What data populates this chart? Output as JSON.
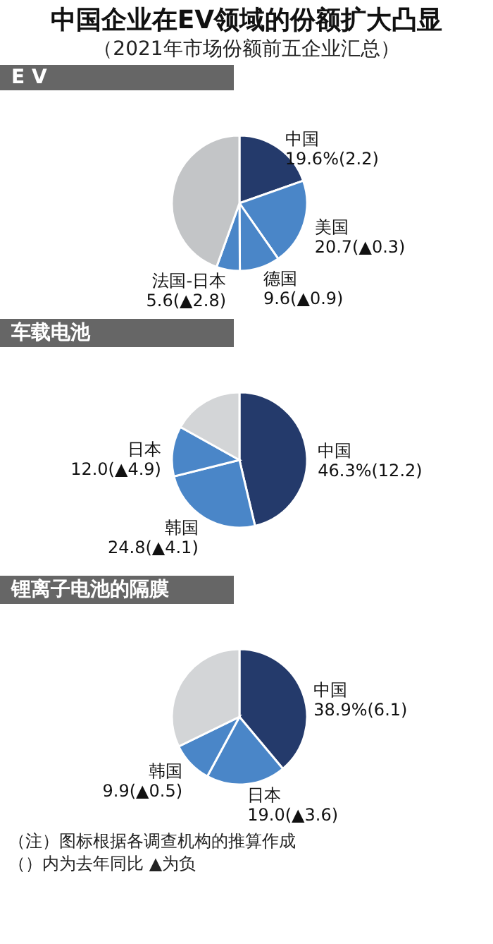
{
  "chart_data": [
    {
      "type": "other",
      "title": "中国企业在EV领域的份额扩大凸显",
      "subtitle": "（2021年市场份额前五企业汇总）"
    },
    {
      "type": "pie",
      "title": "E V",
      "categories": [
        "中国",
        "美国",
        "德国",
        "法国-日本",
        null
      ],
      "values": [
        19.6,
        20.7,
        9.6,
        5.6,
        44.5
      ],
      "value_labels": [
        "19.6%(2.2)",
        "20.7(▲0.3)",
        "9.6(▲0.9)",
        "5.6(▲2.8)",
        null
      ],
      "colors": [
        "#243a6b",
        "#4a86c8",
        "#4a86c8",
        "#4a86c8",
        "#c3c5c7"
      ]
    },
    {
      "type": "pie",
      "title": "车载电池",
      "categories": [
        "中国",
        "韩国",
        "日本",
        null
      ],
      "values": [
        46.3,
        24.8,
        12.0,
        16.9
      ],
      "value_labels": [
        "46.3%(12.2)",
        "24.8(▲4.1)",
        "12.0(▲4.9)",
        null
      ],
      "colors": [
        "#243a6b",
        "#4a86c8",
        "#4a86c8",
        "#d3d5d7"
      ]
    },
    {
      "type": "pie",
      "title": "锂离子电池的隔膜",
      "categories": [
        "中国",
        "日本",
        "韩国",
        null
      ],
      "values": [
        38.9,
        19.0,
        9.9,
        32.2
      ],
      "value_labels": [
        "38.9%(6.1)",
        "19.0(▲3.6)",
        "9.9(▲0.5)",
        null
      ],
      "colors": [
        "#243a6b",
        "#4a86c8",
        "#4a86c8",
        "#d3d5d7"
      ],
      "annotations": [
        "（注）图标根据各调查机构的推算作成",
        "（）内为去年同比 ▲为负"
      ]
    }
  ]
}
